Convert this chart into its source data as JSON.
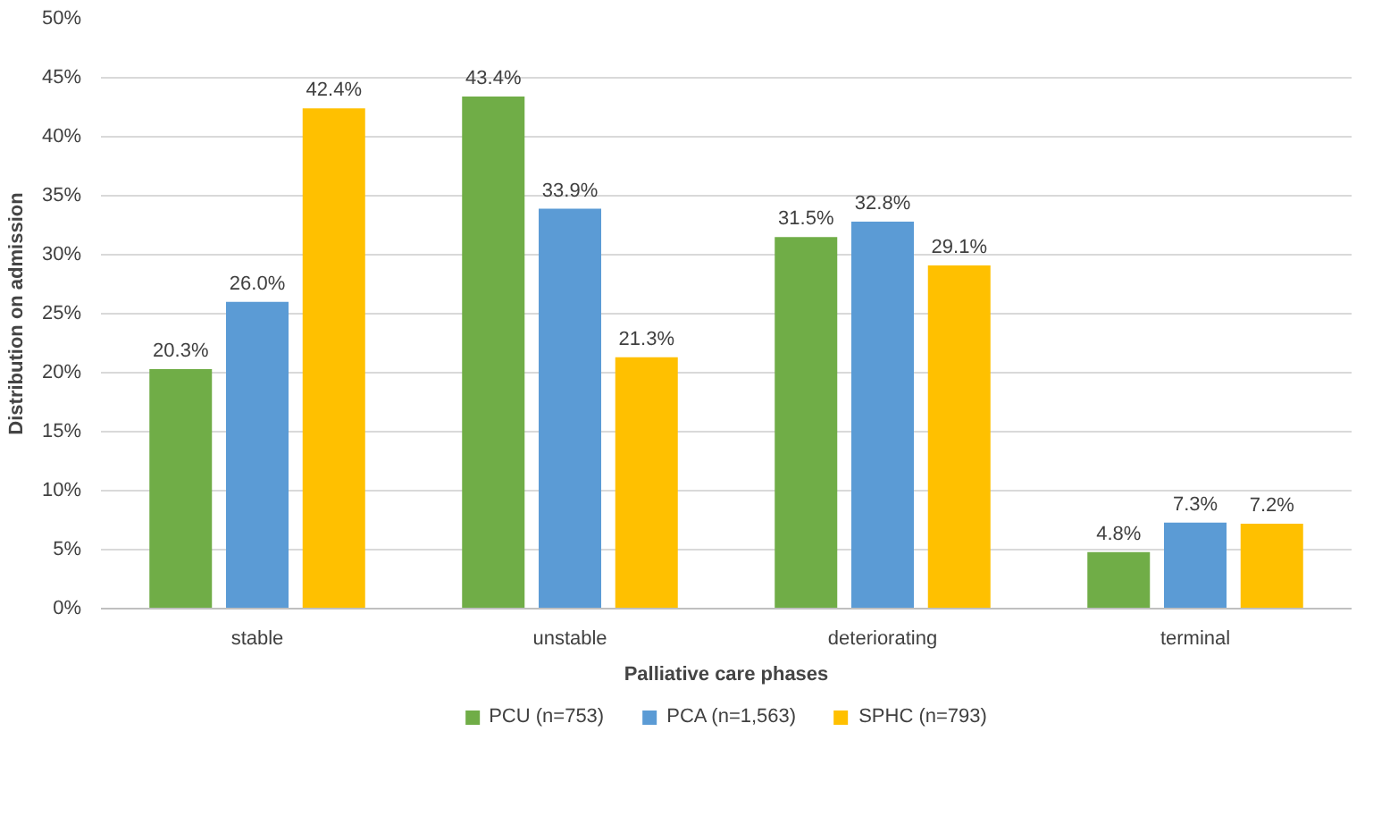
{
  "chart_data": {
    "type": "bar",
    "xlabel": "Palliative care phases",
    "ylabel": "Distribution on admission",
    "categories": [
      "stable",
      "unstable",
      "deteriorating",
      "terminal"
    ],
    "series": [
      {
        "name": "PCU (n=753)",
        "color": "#70ad47",
        "values": [
          20.3,
          43.4,
          31.5,
          4.8
        ],
        "value_labels": [
          "20.3%",
          "43.4%",
          "31.5%",
          "4.8%"
        ]
      },
      {
        "name": "PCA (n=1,563)",
        "color": "#5b9bd5",
        "values": [
          26.0,
          33.9,
          32.8,
          7.3
        ],
        "value_labels": [
          "26.0%",
          "33.9%",
          "32.8%",
          "7.3%"
        ]
      },
      {
        "name": "SPHC (n=793)",
        "color": "#ffc000",
        "values": [
          42.4,
          21.3,
          29.1,
          7.2
        ],
        "value_labels": [
          "42.4%",
          "21.3%",
          "29.1%",
          "7.2%"
        ]
      }
    ],
    "ylim": [
      0,
      50
    ],
    "yticks": [
      {
        "value": 0,
        "label": "0%"
      },
      {
        "value": 5,
        "label": "5%"
      },
      {
        "value": 10,
        "label": "10%"
      },
      {
        "value": 15,
        "label": "15%"
      },
      {
        "value": 20,
        "label": "20%"
      },
      {
        "value": 25,
        "label": "25%"
      },
      {
        "value": 30,
        "label": "30%"
      },
      {
        "value": 35,
        "label": "35%"
      },
      {
        "value": 40,
        "label": "40%"
      },
      {
        "value": 45,
        "label": "45%"
      },
      {
        "value": 50,
        "label": "50%"
      }
    ],
    "grid": "y",
    "legend": "bottom"
  }
}
